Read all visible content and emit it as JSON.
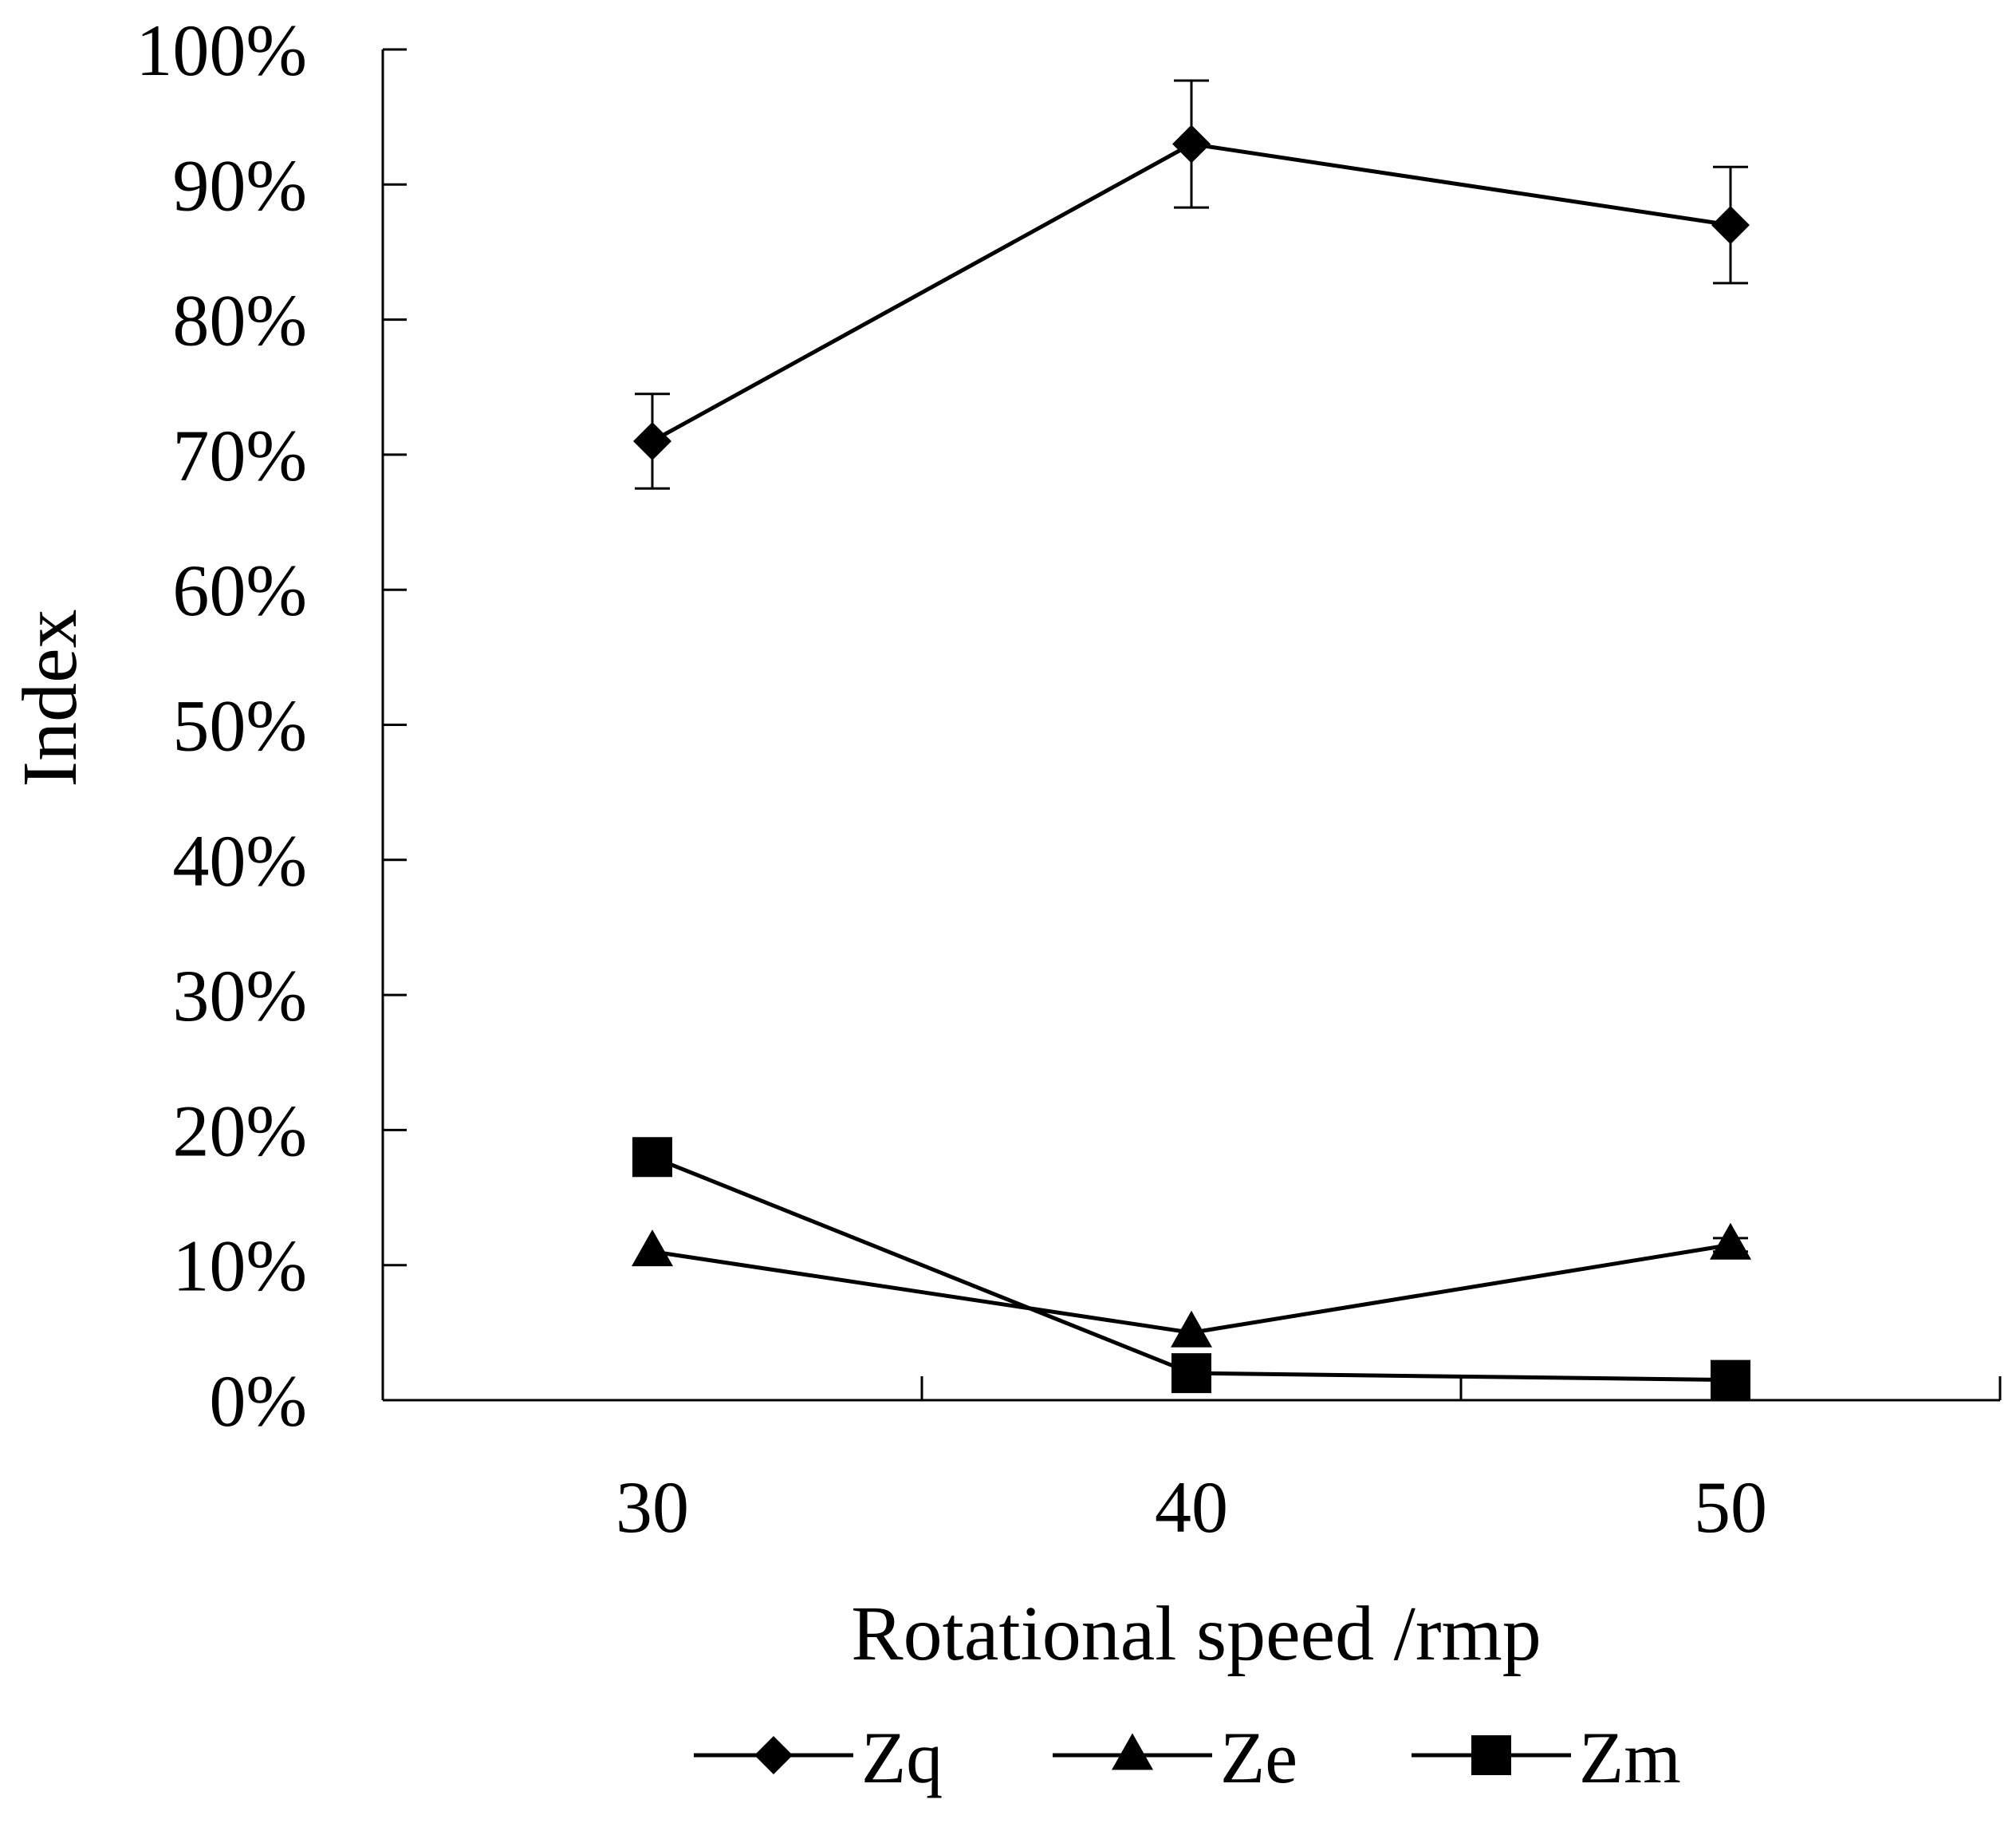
{
  "chart_data": {
    "type": "line",
    "title": "",
    "xlabel": "Rotational speed /rmp",
    "ylabel": "Index",
    "x": [
      30,
      40,
      50
    ],
    "x_tick_labels": [
      "30",
      "40",
      "50"
    ],
    "xlim": [
      25,
      55
    ],
    "ylim": [
      0,
      1
    ],
    "y_ticks": [
      0,
      0.1,
      0.2,
      0.3,
      0.4,
      0.5,
      0.6,
      0.7,
      0.8,
      0.9,
      1.0
    ],
    "y_tick_labels": [
      "0%",
      "10%",
      "20%",
      "30%",
      "40%",
      "50%",
      "60%",
      "70%",
      "80%",
      "90%",
      "100%"
    ],
    "grid": false,
    "legend_position": "bottom",
    "series": [
      {
        "name": "Zq",
        "marker": "diamond",
        "values": [
          0.71,
          0.93,
          0.87
        ],
        "error": [
          0.035,
          0.047,
          0.043
        ]
      },
      {
        "name": "Ze",
        "marker": "triangle",
        "values": [
          0.11,
          0.05,
          0.115
        ],
        "error": [
          0,
          0,
          0.005
        ]
      },
      {
        "name": "Zm",
        "marker": "square",
        "values": [
          0.18,
          0.02,
          0.015
        ],
        "error": [
          0,
          0,
          0
        ]
      }
    ]
  }
}
